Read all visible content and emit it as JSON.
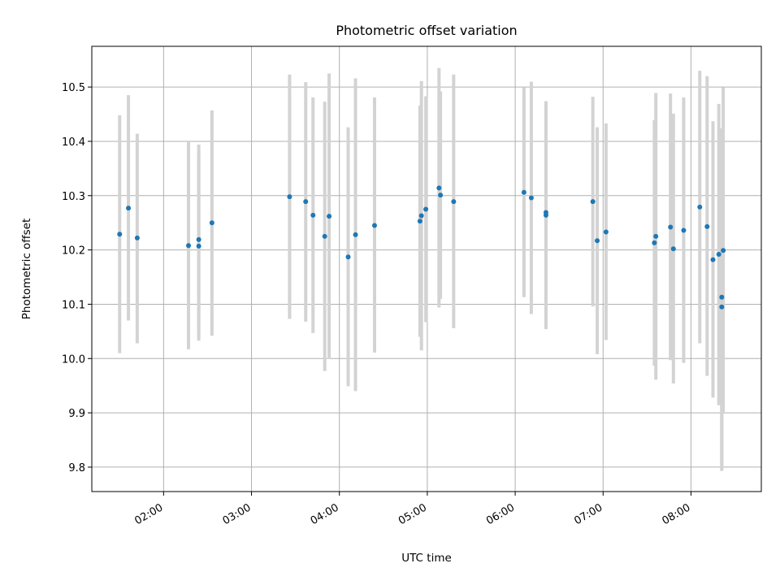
{
  "chart_data": {
    "type": "scatter",
    "title": "Photometric offset variation",
    "xlabel": "UTC time",
    "ylabel": "Photometric offset",
    "x_ticks": [
      "02:00",
      "03:00",
      "04:00",
      "05:00",
      "06:00",
      "07:00",
      "08:00"
    ],
    "y_ticks": [
      "9.8",
      "9.9",
      "10.0",
      "10.1",
      "10.2",
      "10.3",
      "10.4",
      "10.5"
    ],
    "xlim": [
      "01:11",
      "08:48"
    ],
    "ylim": [
      9.755,
      10.575
    ],
    "grid": true,
    "colors": {
      "point": "#1f77b4",
      "error_bar": "#d3d3d3"
    },
    "points": [
      {
        "t": "01:30",
        "y": 10.229,
        "lo": 10.01,
        "hi": 10.448
      },
      {
        "t": "01:36",
        "y": 10.277,
        "lo": 10.07,
        "hi": 10.485
      },
      {
        "t": "01:42",
        "y": 10.222,
        "lo": 10.028,
        "hi": 10.414
      },
      {
        "t": "02:17",
        "y": 10.208,
        "lo": 10.017,
        "hi": 10.4
      },
      {
        "t": "02:24",
        "y": 10.207,
        "lo": 10.033,
        "hi": 10.378
      },
      {
        "t": "02:24",
        "y": 10.219,
        "lo": 10.045,
        "hi": 10.394
      },
      {
        "t": "02:33",
        "y": 10.25,
        "lo": 10.042,
        "hi": 10.457
      },
      {
        "t": "03:26",
        "y": 10.298,
        "lo": 10.073,
        "hi": 10.523
      },
      {
        "t": "03:37",
        "y": 10.289,
        "lo": 10.068,
        "hi": 10.509
      },
      {
        "t": "03:42",
        "y": 10.264,
        "lo": 10.047,
        "hi": 10.481
      },
      {
        "t": "03:50",
        "y": 10.225,
        "lo": 9.977,
        "hi": 10.473
      },
      {
        "t": "03:53",
        "y": 10.262,
        "lo": 9.999,
        "hi": 10.525
      },
      {
        "t": "04:06",
        "y": 10.187,
        "lo": 9.949,
        "hi": 10.426
      },
      {
        "t": "04:11",
        "y": 10.228,
        "lo": 9.94,
        "hi": 10.516
      },
      {
        "t": "04:24",
        "y": 10.245,
        "lo": 10.011,
        "hi": 10.481
      },
      {
        "t": "04:55",
        "y": 10.253,
        "lo": 10.04,
        "hi": 10.466
      },
      {
        "t": "04:56",
        "y": 10.263,
        "lo": 10.015,
        "hi": 10.511
      },
      {
        "t": "04:59",
        "y": 10.275,
        "lo": 10.067,
        "hi": 10.483
      },
      {
        "t": "05:08",
        "y": 10.314,
        "lo": 10.094,
        "hi": 10.535
      },
      {
        "t": "05:09",
        "y": 10.301,
        "lo": 10.11,
        "hi": 10.492
      },
      {
        "t": "05:18",
        "y": 10.289,
        "lo": 10.056,
        "hi": 10.523
      },
      {
        "t": "06:06",
        "y": 10.306,
        "lo": 10.113,
        "hi": 10.499
      },
      {
        "t": "06:11",
        "y": 10.296,
        "lo": 10.082,
        "hi": 10.51
      },
      {
        "t": "06:21",
        "y": 10.269,
        "lo": 10.065,
        "hi": 10.473
      },
      {
        "t": "06:21",
        "y": 10.264,
        "lo": 10.054,
        "hi": 10.474
      },
      {
        "t": "06:53",
        "y": 10.289,
        "lo": 10.096,
        "hi": 10.482
      },
      {
        "t": "06:56",
        "y": 10.217,
        "lo": 10.008,
        "hi": 10.426
      },
      {
        "t": "07:02",
        "y": 10.233,
        "lo": 10.034,
        "hi": 10.433
      },
      {
        "t": "07:35",
        "y": 10.213,
        "lo": 9.987,
        "hi": 10.439
      },
      {
        "t": "07:36",
        "y": 10.225,
        "lo": 9.961,
        "hi": 10.489
      },
      {
        "t": "07:46",
        "y": 10.242,
        "lo": 9.997,
        "hi": 10.488
      },
      {
        "t": "07:48",
        "y": 10.202,
        "lo": 9.954,
        "hi": 10.451
      },
      {
        "t": "07:55",
        "y": 10.236,
        "lo": 9.992,
        "hi": 10.481
      },
      {
        "t": "08:06",
        "y": 10.279,
        "lo": 10.028,
        "hi": 10.53
      },
      {
        "t": "08:11",
        "y": 10.243,
        "lo": 9.968,
        "hi": 10.52
      },
      {
        "t": "08:15",
        "y": 10.182,
        "lo": 9.928,
        "hi": 10.437
      },
      {
        "t": "08:19",
        "y": 10.192,
        "lo": 9.914,
        "hi": 10.469
      },
      {
        "t": "08:21",
        "y": 10.113,
        "lo": 9.803,
        "hi": 10.424
      },
      {
        "t": "08:21",
        "y": 10.095,
        "lo": 9.793,
        "hi": 10.397
      },
      {
        "t": "08:22",
        "y": 10.199,
        "lo": 9.9,
        "hi": 10.499
      }
    ]
  }
}
